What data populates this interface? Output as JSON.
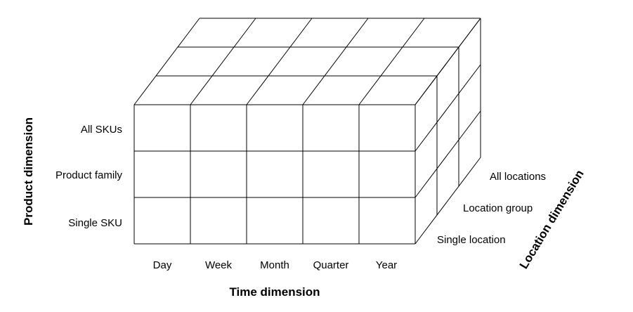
{
  "diagram": {
    "product_axis": {
      "title": "Product dimension",
      "levels": [
        "All SKUs",
        "Product family",
        "Single SKU"
      ]
    },
    "time_axis": {
      "title": "Time dimension",
      "levels": [
        "Day",
        "Week",
        "Month",
        "Quarter",
        "Year"
      ]
    },
    "location_axis": {
      "title": "Location dimension",
      "levels": [
        "All locations",
        "Location group",
        "Single location"
      ]
    }
  }
}
